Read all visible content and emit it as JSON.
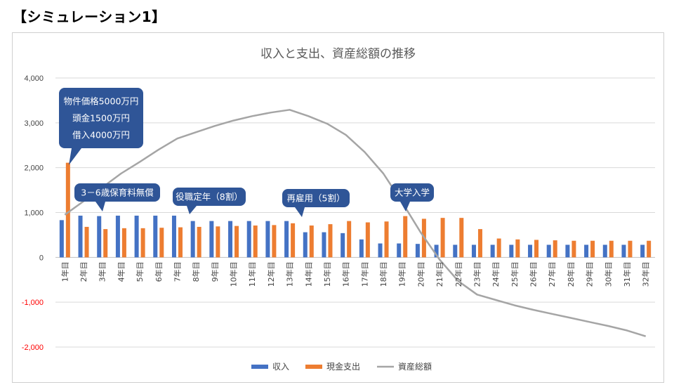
{
  "heading": "【シミュレーション1】",
  "chart_data": {
    "type": "bar",
    "title": "収入と支出、資産総額の推移",
    "categories": [
      "1年目",
      "2年目",
      "3年目",
      "4年目",
      "5年目",
      "6年目",
      "7年目",
      "8年目",
      "9年目",
      "10年目",
      "11年目",
      "12年目",
      "13年目",
      "14年目",
      "15年目",
      "16年目",
      "17年目",
      "18年目",
      "19年目",
      "20年目",
      "21年目",
      "22年目",
      "23年目",
      "24年目",
      "25年目",
      "26年目",
      "27年目",
      "28年目",
      "29年目",
      "30年目",
      "31年目",
      "32年目"
    ],
    "ylim": [
      -2000,
      4000
    ],
    "yticks": [
      "4,000",
      "3,000",
      "2,000",
      "1,000",
      "0",
      "-1,000",
      "-2,000"
    ],
    "ytick_values": [
      4000,
      3000,
      2000,
      1000,
      0,
      -1000,
      -2000
    ],
    "negative_tick_color": "#ff0000",
    "grid": true,
    "legend_position": "bottom",
    "series": [
      {
        "name": "収入",
        "type": "bar",
        "color": "#4472c4",
        "values": [
          830,
          930,
          920,
          930,
          930,
          930,
          930,
          810,
          810,
          810,
          810,
          810,
          810,
          560,
          560,
          540,
          400,
          310,
          310,
          300,
          280,
          280,
          280,
          280,
          280,
          280,
          280,
          280,
          280,
          280,
          280,
          280
        ]
      },
      {
        "name": "現金支出",
        "type": "bar",
        "color": "#ed7d31",
        "values": [
          2110,
          680,
          630,
          650,
          650,
          660,
          670,
          680,
          690,
          700,
          710,
          720,
          760,
          710,
          740,
          810,
          780,
          800,
          920,
          860,
          880,
          880,
          630,
          420,
          400,
          390,
          380,
          370,
          370,
          370,
          370,
          370
        ]
      },
      {
        "name": "資産総額",
        "type": "line",
        "color": "#a5a5a5",
        "values": [
          950,
          1250,
          1560,
          1870,
          2130,
          2400,
          2650,
          2790,
          2930,
          3050,
          3150,
          3230,
          3290,
          3150,
          2980,
          2730,
          2350,
          1870,
          1230,
          550,
          -50,
          -530,
          -830,
          -950,
          -1070,
          -1170,
          -1260,
          -1350,
          -1440,
          -1530,
          -1630,
          -1760
        ]
      }
    ],
    "annotations": [
      {
        "lines": [
          "物件価格5000万円",
          "頭金1500万円",
          "借入4000万円"
        ]
      },
      {
        "lines": [
          "3－6歳保育料無償"
        ]
      },
      {
        "lines": [
          "役職定年（8割）"
        ]
      },
      {
        "lines": [
          "再雇用（5割）"
        ]
      },
      {
        "lines": [
          "大学入学"
        ]
      }
    ]
  }
}
